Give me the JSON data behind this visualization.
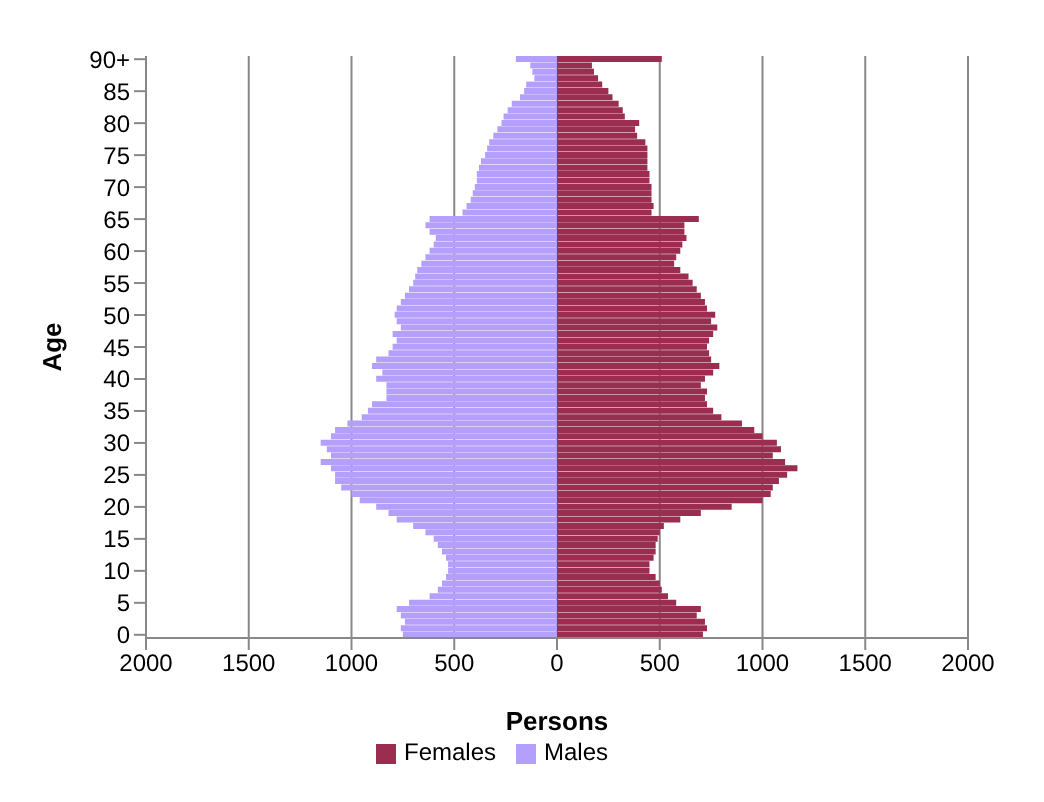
{
  "chart_data": {
    "type": "bar",
    "orientation": "horizontal",
    "stacked": true,
    "xlabel": "Persons",
    "ylabel": "Age",
    "categories": [
      "90+",
      null,
      null,
      null,
      null,
      "85",
      null,
      null,
      null,
      null,
      "80",
      null,
      null,
      null,
      null,
      "75",
      null,
      null,
      null,
      null,
      "70",
      null,
      null,
      null,
      null,
      "65",
      null,
      null,
      null,
      null,
      "60",
      null,
      null,
      null,
      null,
      "55",
      null,
      null,
      null,
      null,
      "50",
      null,
      null,
      null,
      null,
      "45",
      null,
      null,
      null,
      null,
      "40",
      null,
      null,
      null,
      null,
      "35",
      null,
      null,
      null,
      null,
      "30",
      null,
      null,
      null,
      null,
      "25",
      null,
      null,
      null,
      null,
      "20",
      null,
      null,
      null,
      null,
      "15",
      null,
      null,
      null,
      null,
      "10",
      null,
      null,
      null,
      null,
      "5",
      null,
      null,
      null,
      null,
      "0"
    ],
    "series": [
      {
        "name": "Males",
        "color": "#b4a0fc",
        "values": [
          -200,
          -130,
          -120,
          -110,
          -150,
          -160,
          -180,
          -220,
          -240,
          -260,
          -270,
          -290,
          -310,
          -330,
          -340,
          -350,
          -370,
          -380,
          -390,
          -390,
          -400,
          -410,
          -420,
          -440,
          -460,
          -620,
          -640,
          -620,
          -590,
          -600,
          -620,
          -640,
          -660,
          -680,
          -690,
          -700,
          -720,
          -740,
          -760,
          -780,
          -790,
          -780,
          -760,
          -800,
          -780,
          -800,
          -820,
          -880,
          -900,
          -850,
          -880,
          -830,
          -830,
          -830,
          -900,
          -920,
          -950,
          -1020,
          -1080,
          -1100,
          -1150,
          -1120,
          -1100,
          -1150,
          -1100,
          -1080,
          -1080,
          -1050,
          -1000,
          -960,
          -880,
          -820,
          -780,
          -700,
          -640,
          -600,
          -580,
          -560,
          -540,
          -530,
          -530,
          -540,
          -560,
          -580,
          -620,
          -720,
          -780,
          -760,
          -740,
          -760,
          -750
        ]
      },
      {
        "name": "Females",
        "color": "#9b2d50",
        "values": [
          510,
          170,
          180,
          200,
          220,
          250,
          270,
          300,
          320,
          330,
          400,
          380,
          390,
          430,
          440,
          440,
          440,
          440,
          450,
          450,
          460,
          460,
          460,
          470,
          460,
          690,
          620,
          620,
          630,
          610,
          600,
          580,
          570,
          600,
          640,
          660,
          680,
          700,
          720,
          730,
          770,
          750,
          780,
          760,
          740,
          730,
          740,
          750,
          790,
          760,
          720,
          700,
          730,
          720,
          730,
          760,
          800,
          900,
          960,
          1000,
          1070,
          1090,
          1050,
          1110,
          1170,
          1120,
          1080,
          1050,
          1040,
          1000,
          850,
          700,
          600,
          520,
          500,
          490,
          480,
          480,
          470,
          450,
          450,
          480,
          500,
          510,
          540,
          580,
          700,
          680,
          720,
          730,
          710
        ]
      }
    ],
    "xlim": [
      -2000,
      2000
    ],
    "xticks": [
      {
        "value": -2000,
        "label": "2000"
      },
      {
        "value": -1500,
        "label": "1500"
      },
      {
        "value": -1000,
        "label": "1000"
      },
      {
        "value": -500,
        "label": "500"
      },
      0,
      500,
      1000,
      1500,
      2000
    ],
    "grid": "x",
    "legend": "bottom"
  }
}
